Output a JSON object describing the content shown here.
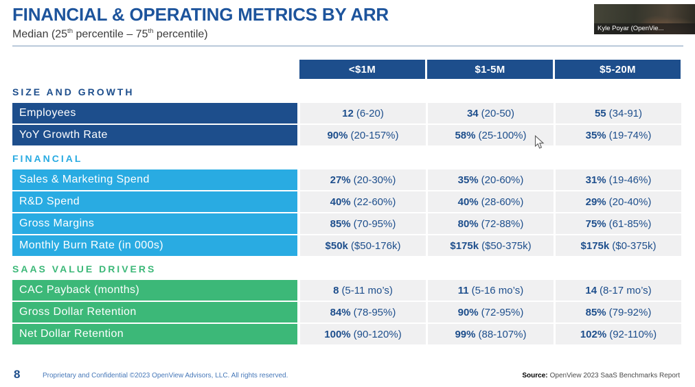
{
  "slide": {
    "title": "FINANCIAL & OPERATING METRICS BY ARR",
    "subtitle": "Median (25th percentile – 75th percentile)"
  },
  "webcam": {
    "label": "Kyle Poyar (OpenVie..."
  },
  "table": {
    "columns": [
      "<$1M",
      "$1-5M",
      "$5-20M"
    ],
    "sections": [
      {
        "heading": "SIZE AND GROWTH",
        "color": "#1d4e8c",
        "rows": [
          {
            "label": "Employees",
            "cells": [
              {
                "median": "12",
                "range": "(6-20)"
              },
              {
                "median": "34",
                "range": "(20-50)"
              },
              {
                "median": "55",
                "range": "(34-91)"
              }
            ]
          },
          {
            "label": "YoY Growth Rate",
            "cells": [
              {
                "median": "90%",
                "range": "(20-157%)"
              },
              {
                "median": "58%",
                "range": "(25-100%)"
              },
              {
                "median": "35%",
                "range": "(19-74%)"
              }
            ]
          }
        ]
      },
      {
        "heading": "FINANCIAL",
        "color": "#29abe2",
        "rows": [
          {
            "label": "Sales & Marketing Spend",
            "cells": [
              {
                "median": "27%",
                "range": "(20-30%)"
              },
              {
                "median": "35%",
                "range": "(20-60%)"
              },
              {
                "median": "31%",
                "range": "(19-46%)"
              }
            ]
          },
          {
            "label": "R&D Spend",
            "cells": [
              {
                "median": "40%",
                "range": "(22-60%)"
              },
              {
                "median": "40%",
                "range": "(28-60%)"
              },
              {
                "median": "29%",
                "range": "(20-40%)"
              }
            ]
          },
          {
            "label": "Gross Margins",
            "cells": [
              {
                "median": "85%",
                "range": "(70-95%)"
              },
              {
                "median": "80%",
                "range": "(72-88%)"
              },
              {
                "median": "75%",
                "range": "(61-85%)"
              }
            ]
          },
          {
            "label": "Monthly Burn Rate (in 000s)",
            "cells": [
              {
                "median": "$50k",
                "range": "($50-176k)"
              },
              {
                "median": "$175k",
                "range": "($50-375k)"
              },
              {
                "median": "$175k",
                "range": "($0-375k)"
              }
            ]
          }
        ]
      },
      {
        "heading": "SAAS VALUE DRIVERS",
        "color": "#3cb878",
        "rows": [
          {
            "label": "CAC Payback (months)",
            "cells": [
              {
                "median": "8",
                "range": "(5-11 mo’s)"
              },
              {
                "median": "11",
                "range": "(5-16 mo’s)"
              },
              {
                "median": "14",
                "range": "(8-17 mo’s)"
              }
            ]
          },
          {
            "label": "Gross Dollar Retention",
            "cells": [
              {
                "median": "84%",
                "range": "(78-95%)"
              },
              {
                "median": "90%",
                "range": "(72-95%)"
              },
              {
                "median": "85%",
                "range": "(79-92%)"
              }
            ]
          },
          {
            "label": "Net Dollar Retention",
            "cells": [
              {
                "median": "100%",
                "range": "(90-120%)"
              },
              {
                "median": "99%",
                "range": "(88-107%)"
              },
              {
                "median": "102%",
                "range": "(92-110%)"
              }
            ]
          }
        ]
      }
    ]
  },
  "footer": {
    "page_number": "8",
    "confidential": "Proprietary and Confidential ©2023 OpenView Advisors, LLC. All rights reserved.",
    "source_label": "Source:",
    "source_text": "OpenView 2023 SaaS Benchmarks Report"
  },
  "colors": {
    "dark_blue": "#1d4e8c",
    "light_blue": "#29abe2",
    "green": "#3cb878",
    "title_blue": "#1d549c",
    "cell_bg": "#f0f0f1"
  }
}
